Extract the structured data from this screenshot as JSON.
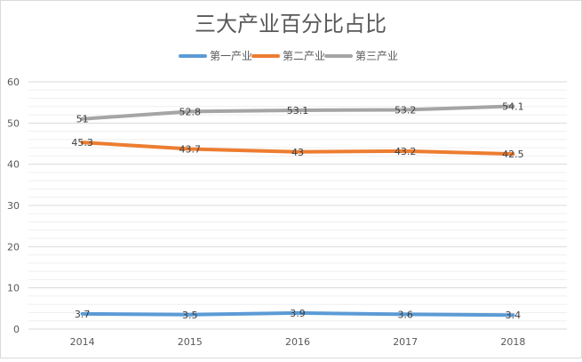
{
  "chart_data": {
    "type": "line",
    "title": "三大产业百分比占比",
    "categories": [
      "2014",
      "2015",
      "2016",
      "2017",
      "2018"
    ],
    "ylim": [
      0,
      60
    ],
    "yticks": [
      0,
      10,
      20,
      30,
      40,
      50,
      60
    ],
    "grid": true,
    "legend_position": "top",
    "series": [
      {
        "name": "第一产业",
        "color": "#5b9bd5",
        "values": [
          3.7,
          3.5,
          3.9,
          3.6,
          3.4
        ]
      },
      {
        "name": "第二产业",
        "color": "#ed7d31",
        "values": [
          45.3,
          43.7,
          43,
          43.2,
          42.5
        ]
      },
      {
        "name": "第三产业",
        "color": "#a5a5a5",
        "values": [
          51,
          52.8,
          53.1,
          53.2,
          54.1
        ]
      }
    ],
    "data_labels": true
  }
}
